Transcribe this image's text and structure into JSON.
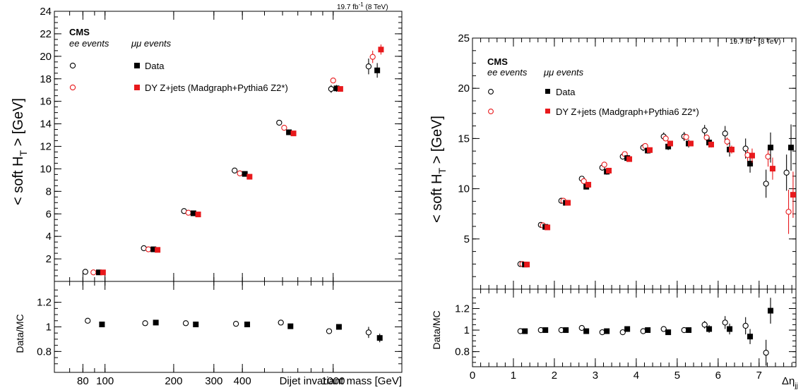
{
  "colors": {
    "data": "#000000",
    "mc": "#e8191c"
  },
  "chart_data": [
    {
      "type": "scatter",
      "lumi": "19.7 fb-1 (8 TeV)",
      "lumi_parts": [
        "19.7 fb",
        "-1",
        " (8 TeV)"
      ],
      "cms_label": "CMS",
      "ee_label": "ee events",
      "mumu_label": "μμ events",
      "ylabel": "< soft H_T > [GeV]",
      "ylabel_parts": [
        "< soft H",
        "T",
        " > [GeV]"
      ],
      "ratio_ylabel": "Data/MC",
      "xlabel": "Dijet invariant mass [GeV]",
      "x_scale": "log",
      "xlim": [
        60,
        2000
      ],
      "ylim": [
        0,
        24
      ],
      "ratio_ylim": [
        0.63,
        1.37
      ],
      "x_ticks": [
        80,
        100,
        200,
        300,
        400,
        1000
      ],
      "x_tick_labels": [
        "80",
        "100",
        "200",
        "300",
        "400",
        "1000"
      ],
      "y_ticks": [
        2,
        4,
        6,
        8,
        10,
        12,
        14,
        16,
        18,
        20,
        22,
        24
      ],
      "y_tick_labels": [
        "2",
        "4",
        "6",
        "8",
        "10",
        "12",
        "14",
        "16",
        "18",
        "20",
        "22",
        "24"
      ],
      "ratio_y_ticks": [
        0.8,
        1,
        1.2
      ],
      "ratio_y_tick_labels": [
        "0.8",
        "1",
        "1.2"
      ],
      "legend": [
        {
          "label": "Data",
          "position": "top-left"
        },
        {
          "label": "DY Z+jets (Madgraph+Pythia6 Z2*)",
          "position": "top-left"
        }
      ],
      "series": [
        {
          "name": "Data",
          "channel": "ee",
          "marker": "open-circle",
          "color": "#000000",
          "x": [
            82,
            148,
            222,
            370,
            580,
            980,
            1430
          ],
          "y": [
            0.85,
            2.95,
            6.25,
            9.85,
            14.1,
            17.1,
            19.1
          ],
          "err": [
            0.1,
            0.1,
            0.1,
            0.1,
            0.2,
            0.35,
            0.7
          ]
        },
        {
          "name": "DY Z+jets (Madgraph+Pythia6 Z2*)",
          "channel": "ee",
          "marker": "open-circle",
          "color": "#e8191c",
          "x": [
            89,
            155,
            232,
            390,
            610,
            1000,
            1490
          ],
          "y": [
            0.8,
            2.85,
            6.1,
            9.6,
            13.65,
            17.85,
            19.95
          ],
          "err": [
            0.05,
            0.05,
            0.05,
            0.05,
            0.1,
            0.15,
            0.55
          ]
        },
        {
          "name": "Data",
          "channel": "mumu",
          "marker": "filled-square",
          "color": "#000000",
          "x": [
            94,
            163,
            244,
            410,
            640,
            1035,
            1560
          ],
          "y": [
            0.8,
            2.85,
            6.05,
            9.55,
            13.25,
            17.15,
            18.75
          ],
          "err": [
            0.1,
            0.1,
            0.1,
            0.1,
            0.15,
            0.3,
            0.65
          ]
        },
        {
          "name": "DY Z+jets (Madgraph+Pythia6 Z2*)",
          "channel": "mumu",
          "marker": "filled-square",
          "color": "#e8191c",
          "x": [
            98,
            170,
            256,
            430,
            670,
            1075,
            1620
          ],
          "y": [
            0.8,
            2.8,
            5.95,
            9.3,
            13.15,
            17.1,
            20.6
          ],
          "err": [
            0.05,
            0.05,
            0.05,
            0.05,
            0.1,
            0.15,
            0.45
          ]
        }
      ],
      "ratio_series": [
        {
          "name": "ee Data/MC",
          "marker": "open-circle",
          "x": [
            84,
            150,
            226,
            375,
            590,
            960,
            1430
          ],
          "y": [
            1.05,
            1.03,
            1.03,
            1.025,
            1.035,
            0.965,
            0.955
          ],
          "err": [
            0.01,
            0.01,
            0.01,
            0.01,
            0.015,
            0.02,
            0.045
          ]
        },
        {
          "name": "mumu Data/MC",
          "marker": "filled-square",
          "x": [
            97,
            167,
            250,
            420,
            650,
            1060,
            1600
          ],
          "y": [
            1.02,
            1.035,
            1.02,
            1.02,
            1.005,
            1.0,
            0.91
          ],
          "err": [
            0.01,
            0.01,
            0.01,
            0.01,
            0.012,
            0.02,
            0.035
          ]
        }
      ]
    },
    {
      "type": "scatter",
      "lumi": "19.7 fb-1 (8 TeV)",
      "lumi_parts": [
        "19.7 fb",
        "-1",
        " (8 TeV)"
      ],
      "cms_label": "CMS",
      "ee_label": "ee events",
      "mumu_label": "μμ events",
      "ylabel": "< soft H_T > [GeV]",
      "ylabel_parts": [
        "< soft H",
        "T",
        " > [GeV]"
      ],
      "ratio_ylabel": "Data/MC",
      "xlabel": "Δη_jj",
      "xlabel_parts": [
        "Δη",
        "jj"
      ],
      "xlim": [
        0,
        7.9
      ],
      "ylim": [
        0,
        25
      ],
      "ratio_ylim": [
        0.66,
        1.38
      ],
      "x_ticks": [
        0,
        1,
        2,
        3,
        4,
        5,
        6,
        7
      ],
      "x_tick_labels": [
        "0",
        "1",
        "2",
        "3",
        "4",
        "5",
        "6",
        "7"
      ],
      "y_ticks": [
        5,
        10,
        15,
        20,
        25
      ],
      "y_tick_labels": [
        "5",
        "10",
        "15",
        "20",
        "25"
      ],
      "ratio_y_ticks": [
        0.8,
        1,
        1.2
      ],
      "ratio_y_tick_labels": [
        "0.8",
        "1",
        "1.2"
      ],
      "legend": [
        {
          "label": "Data",
          "position": "top-left"
        },
        {
          "label": "DY Z+jets (Madgraph+Pythia6 Z2*)",
          "position": "top-left"
        }
      ],
      "series": [
        {
          "name": "Data",
          "channel": "ee",
          "marker": "open-circle",
          "color": "#000000",
          "x": [
            1.17,
            1.67,
            2.17,
            2.67,
            3.17,
            3.67,
            4.17,
            4.67,
            5.17,
            5.67,
            6.17,
            6.67,
            7.17,
            7.67
          ],
          "y": [
            2.5,
            6.4,
            8.8,
            11.0,
            12.1,
            13.2,
            14.1,
            15.2,
            15.2,
            15.8,
            15.5,
            14.0,
            10.5,
            11.6
          ],
          "err": [
            0.1,
            0.15,
            0.2,
            0.25,
            0.3,
            0.3,
            0.35,
            0.4,
            0.45,
            0.55,
            0.75,
            1.0,
            1.4,
            1.8
          ]
        },
        {
          "name": "DY Z+jets (Madgraph+Pythia6 Z2*)",
          "channel": "ee",
          "marker": "open-circle",
          "color": "#e8191c",
          "x": [
            1.22,
            1.72,
            2.22,
            2.72,
            3.22,
            3.72,
            4.22,
            4.72,
            5.22,
            5.72,
            6.22,
            6.72,
            7.22,
            7.72
          ],
          "y": [
            2.5,
            6.35,
            8.8,
            10.75,
            12.4,
            13.45,
            14.25,
            15.0,
            15.15,
            15.1,
            14.7,
            13.35,
            13.2,
            7.7
          ],
          "err": [
            0.05,
            0.05,
            0.05,
            0.05,
            0.1,
            0.1,
            0.1,
            0.15,
            0.2,
            0.3,
            0.4,
            0.6,
            1.0,
            2.2
          ]
        },
        {
          "name": "Data",
          "channel": "mumu",
          "marker": "filled-square",
          "color": "#000000",
          "x": [
            1.28,
            1.78,
            2.28,
            2.78,
            3.28,
            3.78,
            4.28,
            4.78,
            5.28,
            5.78,
            6.28,
            6.78,
            7.28,
            7.78
          ],
          "y": [
            2.45,
            6.2,
            8.6,
            10.2,
            11.7,
            13.05,
            13.8,
            14.2,
            14.5,
            14.6,
            13.9,
            12.5,
            14.1,
            14.1
          ],
          "err": [
            0.1,
            0.15,
            0.2,
            0.25,
            0.3,
            0.3,
            0.3,
            0.35,
            0.4,
            0.5,
            0.7,
            0.9,
            1.5,
            2.3
          ]
        },
        {
          "name": "DY Z+jets (Madgraph+Pythia6 Z2*)",
          "channel": "mumu",
          "marker": "filled-square",
          "color": "#e8191c",
          "x": [
            1.33,
            1.83,
            2.33,
            2.83,
            3.33,
            3.83,
            4.33,
            4.83,
            5.33,
            5.83,
            6.33,
            6.83,
            7.33,
            7.83
          ],
          "y": [
            2.45,
            6.15,
            8.6,
            10.4,
            11.8,
            12.95,
            13.85,
            14.5,
            14.5,
            14.4,
            13.9,
            13.3,
            12.0,
            9.4
          ],
          "err": [
            0.05,
            0.05,
            0.05,
            0.05,
            0.1,
            0.1,
            0.1,
            0.15,
            0.2,
            0.3,
            0.4,
            0.7,
            1.1,
            2.3
          ]
        }
      ],
      "ratio_series": [
        {
          "name": "ee Data/MC",
          "marker": "open-circle",
          "x": [
            1.17,
            1.67,
            2.17,
            2.67,
            3.17,
            3.67,
            4.17,
            4.67,
            5.17,
            5.67,
            6.17,
            6.67,
            7.17
          ],
          "y": [
            0.99,
            1.0,
            1.0,
            1.02,
            0.98,
            0.98,
            0.99,
            1.01,
            1.0,
            1.05,
            1.07,
            1.04,
            0.79
          ],
          "err": [
            0.01,
            0.01,
            0.01,
            0.015,
            0.015,
            0.015,
            0.015,
            0.02,
            0.025,
            0.035,
            0.06,
            0.08,
            0.12
          ]
        },
        {
          "name": "mumu Data/MC",
          "marker": "filled-square",
          "x": [
            1.28,
            1.78,
            2.28,
            2.78,
            3.28,
            3.78,
            4.28,
            4.78,
            5.28,
            5.78,
            6.28,
            6.78,
            7.28
          ],
          "y": [
            0.99,
            1.0,
            1.0,
            0.99,
            0.99,
            1.01,
            1.0,
            0.98,
            1.0,
            1.01,
            1.01,
            0.94,
            1.18
          ],
          "err": [
            0.01,
            0.01,
            0.01,
            0.015,
            0.015,
            0.015,
            0.015,
            0.02,
            0.025,
            0.035,
            0.05,
            0.07,
            0.12
          ]
        }
      ]
    }
  ]
}
